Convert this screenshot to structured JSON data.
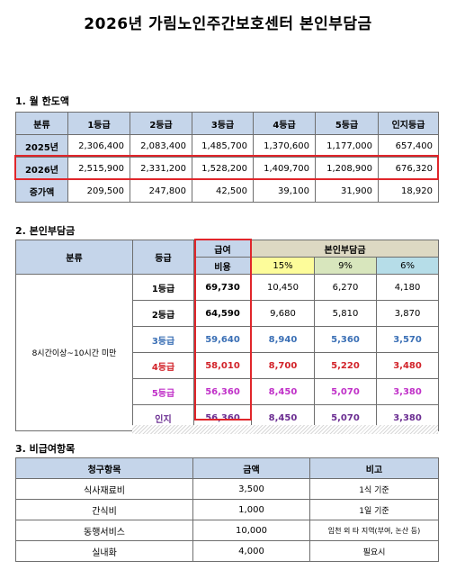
{
  "title": "2026년 가림노인주간보호센터 본인부담금",
  "section1": {
    "heading": "1. 월 한도액",
    "headers": [
      "분류",
      "1등급",
      "2등급",
      "3등급",
      "4등급",
      "5등급",
      "인지등급"
    ],
    "rows": [
      {
        "label": "2025년",
        "values": [
          "2,306,400",
          "2,083,400",
          "1,485,700",
          "1,370,600",
          "1,177,000",
          "657,400"
        ]
      },
      {
        "label": "2026년",
        "values": [
          "2,515,900",
          "2,331,200",
          "1,528,200",
          "1,409,700",
          "1,208,900",
          "676,320"
        ]
      },
      {
        "label": "증가액",
        "values": [
          "209,500",
          "247,800",
          "42,500",
          "39,100",
          "31,900",
          "18,920"
        ]
      }
    ]
  },
  "section2": {
    "heading": "2. 본인부담금",
    "col_class": "분류",
    "col_grade": "등급",
    "col_fee_line1": "급여",
    "col_fee_line2": "비용",
    "col_group": "본인부담금",
    "rates": [
      "15%",
      "9%",
      "6%"
    ],
    "time_label": "8시간이상~10시간 미만",
    "rows": [
      {
        "grade": "1등급",
        "fee": "69,730",
        "r15": "10,450",
        "r9": "6,270",
        "r6": "4,180"
      },
      {
        "grade": "2등급",
        "fee": "64,590",
        "r15": "9,680",
        "r9": "5,810",
        "r6": "3,870"
      },
      {
        "grade": "3등급",
        "fee": "59,640",
        "r15": "8,940",
        "r9": "5,360",
        "r6": "3,570"
      },
      {
        "grade": "4등급",
        "fee": "58,010",
        "r15": "8,700",
        "r9": "5,220",
        "r6": "3,480"
      },
      {
        "grade": "5등급",
        "fee": "56,360",
        "r15": "8,450",
        "r9": "5,070",
        "r6": "3,380"
      },
      {
        "grade": "인지",
        "fee": "56,360",
        "r15": "8,450",
        "r9": "5,070",
        "r6": "3,380"
      }
    ],
    "row_colors": [
      "#000000",
      "#000000",
      "#3a6fb5",
      "#d2232a",
      "#c030c8",
      "#6a2c91"
    ]
  },
  "section3": {
    "heading": "3. 비급여항목",
    "headers": [
      "청구항목",
      "금액",
      "비고"
    ],
    "rows": [
      {
        "item": "식사재료비",
        "amount": "3,500",
        "note": "1식 기준"
      },
      {
        "item": "간식비",
        "amount": "1,000",
        "note": "1일 기준"
      },
      {
        "item": "동행서비스",
        "amount": "10,000",
        "note": "임천 외 타 지역(부여, 논산 등)"
      },
      {
        "item": "실내화",
        "amount": "4,000",
        "note": "필요시"
      }
    ]
  }
}
